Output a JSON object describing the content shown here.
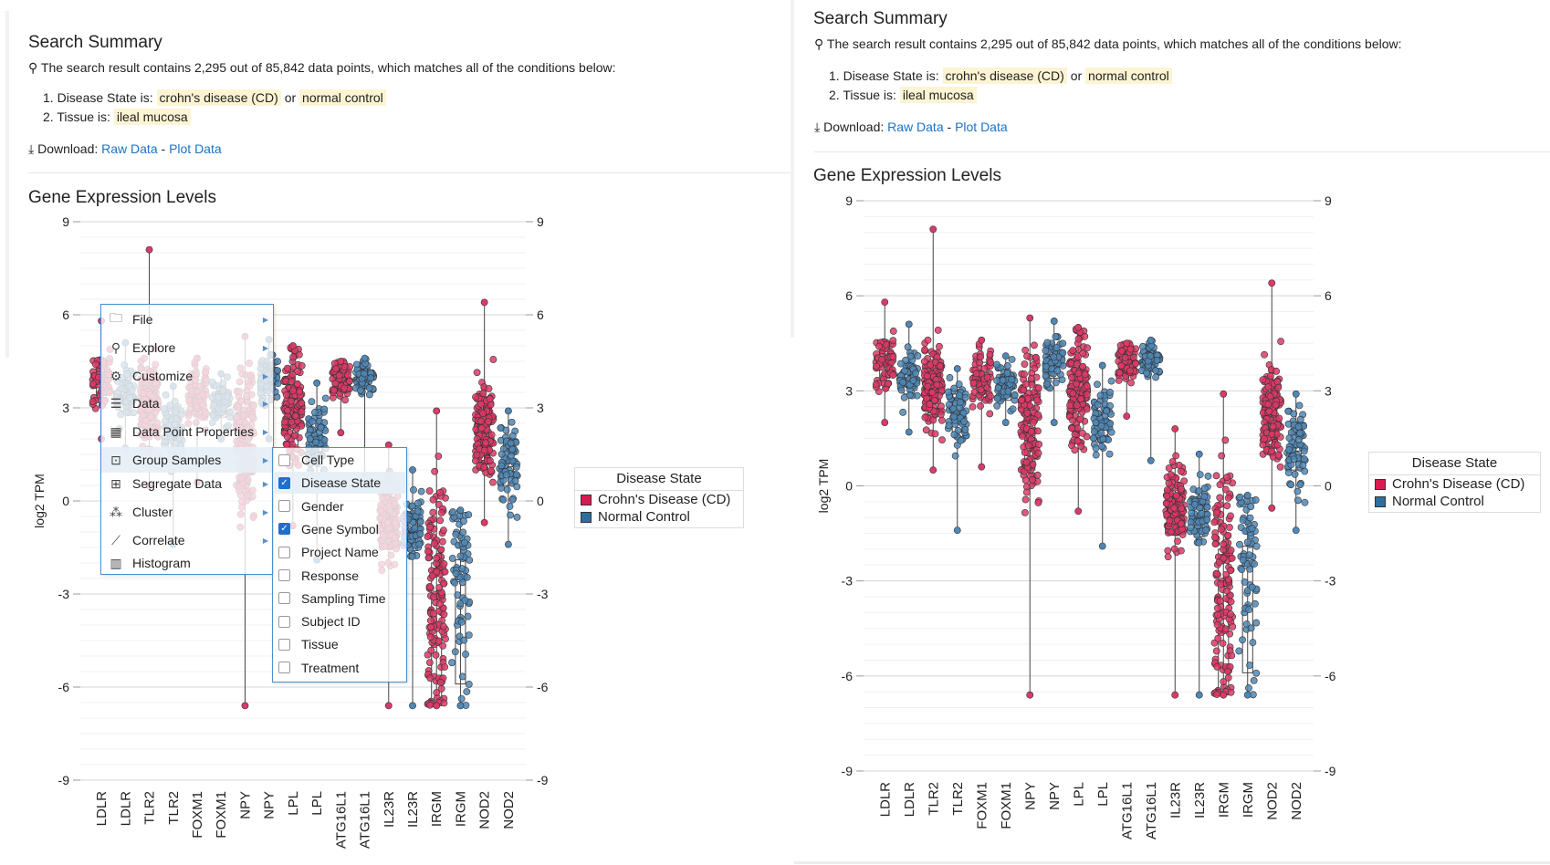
{
  "summary": {
    "title": "Search Summary",
    "result_text": "The search result contains 2,295 out of 85,842 data points, which matches all of the conditions below:",
    "conditions": [
      {
        "num": "1.",
        "label": "Disease State is:",
        "values": [
          "crohn's disease (CD)",
          "normal control"
        ],
        "joiner": "or"
      },
      {
        "num": "2.",
        "label": "Tissue is:",
        "values": [
          "ileal mucosa"
        ]
      }
    ],
    "download_label": "Download:",
    "raw_data": "Raw Data",
    "dash": "-",
    "plot_data": "Plot Data"
  },
  "chart_title": "Gene Expression Levels",
  "context_menu": {
    "items": [
      {
        "label": "File",
        "icon": "folder-icon",
        "glyph": "🗀",
        "submenu": true
      },
      {
        "label": "Explore",
        "icon": "magnifier-icon",
        "glyph": "⚲",
        "submenu": true
      },
      {
        "label": "Customize",
        "icon": "gear-icon",
        "glyph": "⚙",
        "submenu": true
      },
      {
        "label": "Data",
        "icon": "database-icon",
        "glyph": "☰",
        "submenu": true
      },
      {
        "label": "Data Point Properties",
        "icon": "properties-icon",
        "glyph": "▦",
        "submenu": true
      },
      {
        "label": "Group Samples",
        "icon": "group-icon",
        "glyph": "⊡",
        "submenu": true,
        "active": true
      },
      {
        "label": "Segregate Data",
        "icon": "segregate-icon",
        "glyph": "⊞",
        "submenu": true
      },
      {
        "label": "Cluster",
        "icon": "cluster-icon",
        "glyph": "⁂",
        "submenu": true
      },
      {
        "label": "Correlate",
        "icon": "correlate-icon",
        "glyph": "⟋",
        "submenu": true
      },
      {
        "label": "Histogram",
        "icon": "histogram-icon",
        "glyph": "▥",
        "submenu": false
      }
    ],
    "submenu_items": [
      {
        "label": "Cell Type",
        "checked": false
      },
      {
        "label": "Disease State",
        "checked": true
      },
      {
        "label": "Gender",
        "checked": false
      },
      {
        "label": "Gene Symbol",
        "checked": true
      },
      {
        "label": "Project Name",
        "checked": false
      },
      {
        "label": "Response",
        "checked": false
      },
      {
        "label": "Sampling Time",
        "checked": false
      },
      {
        "label": "Subject ID",
        "checked": false
      },
      {
        "label": "Tissue",
        "checked": false
      },
      {
        "label": "Treatment",
        "checked": false
      }
    ]
  },
  "legend": {
    "title": "Disease State",
    "entries": [
      {
        "label": "Crohn's Disease (CD)",
        "color": "#d81b50"
      },
      {
        "label": "Normal Control",
        "color": "#2f6e9c"
      }
    ]
  },
  "colors": {
    "cd": "#dc3a66",
    "normal": "#4f87b6",
    "link": "#1a73c8",
    "highlight": "#fdf4d3"
  },
  "chart_data": {
    "type": "box",
    "ylabel": "log2 TPM",
    "ylim": [
      -9,
      9
    ],
    "yticks": [
      9,
      6,
      3,
      0,
      -3,
      -6,
      -9
    ],
    "categories": [
      "LDLR",
      "LDLR",
      "TLR2",
      "TLR2",
      "FOXM1",
      "FOXM1",
      "NPY",
      "NPY",
      "LPL",
      "LPL",
      "ATG16L1",
      "ATG16L1",
      "IL23R",
      "IL23R",
      "IRGM",
      "IRGM",
      "NOD2",
      "NOD2"
    ],
    "series_by_category": [
      "Crohn's Disease (CD)",
      "Normal Control",
      "Crohn's Disease (CD)",
      "Normal Control",
      "Crohn's Disease (CD)",
      "Normal Control",
      "Crohn's Disease (CD)",
      "Normal Control",
      "Crohn's Disease (CD)",
      "Normal Control",
      "Crohn's Disease (CD)",
      "Normal Control",
      "Crohn's Disease (CD)",
      "Normal Control",
      "Crohn's Disease (CD)",
      "Normal Control",
      "Crohn's Disease (CD)",
      "Normal Control"
    ],
    "boxes": [
      {
        "q1": 3.4,
        "median": 3.9,
        "q3": 4.3,
        "min": 2.0,
        "max": 5.8
      },
      {
        "q1": 2.9,
        "median": 3.4,
        "q3": 3.8,
        "min": 1.7,
        "max": 5.1
      },
      {
        "q1": 2.3,
        "median": 3.1,
        "q3": 3.9,
        "min": 0.5,
        "max": 8.1
      },
      {
        "q1": 1.7,
        "median": 2.3,
        "q3": 2.9,
        "min": -1.4,
        "max": 3.7
      },
      {
        "q1": 2.9,
        "median": 3.4,
        "q3": 3.9,
        "min": 0.6,
        "max": 4.6
      },
      {
        "q1": 2.7,
        "median": 3.1,
        "q3": 3.5,
        "min": 2.0,
        "max": 4.1
      },
      {
        "q1": 0.5,
        "median": 2.0,
        "q3": 3.3,
        "min": -6.6,
        "max": 5.3
      },
      {
        "q1": 3.4,
        "median": 3.9,
        "q3": 4.3,
        "min": 2.0,
        "max": 5.2
      },
      {
        "q1": 1.8,
        "median": 3.0,
        "q3": 3.8,
        "min": -0.8,
        "max": 5.0
      },
      {
        "q1": 1.4,
        "median": 2.0,
        "q3": 2.6,
        "min": -1.9,
        "max": 3.8
      },
      {
        "q1": 3.6,
        "median": 3.9,
        "q3": 4.2,
        "min": 2.2,
        "max": 4.5
      },
      {
        "q1": 3.7,
        "median": 4.0,
        "q3": 4.3,
        "min": 0.8,
        "max": 4.6
      },
      {
        "q1": -1.4,
        "median": -0.7,
        "q3": 0.0,
        "min": -6.6,
        "max": 1.8
      },
      {
        "q1": -1.6,
        "median": -0.9,
        "q3": -0.5,
        "min": -6.6,
        "max": 1.0
      },
      {
        "q1": -6.6,
        "median": -3.0,
        "q3": -2.0,
        "min": -6.6,
        "max": 2.9
      },
      {
        "q1": -5.9,
        "median": -2.6,
        "q3": -1.9,
        "min": -6.6,
        "max": -0.3
      },
      {
        "q1": 1.3,
        "median": 2.2,
        "q3": 3.1,
        "min": -0.7,
        "max": 6.4
      },
      {
        "q1": 0.5,
        "median": 1.1,
        "q3": 2.0,
        "min": -1.4,
        "max": 2.9
      }
    ]
  }
}
